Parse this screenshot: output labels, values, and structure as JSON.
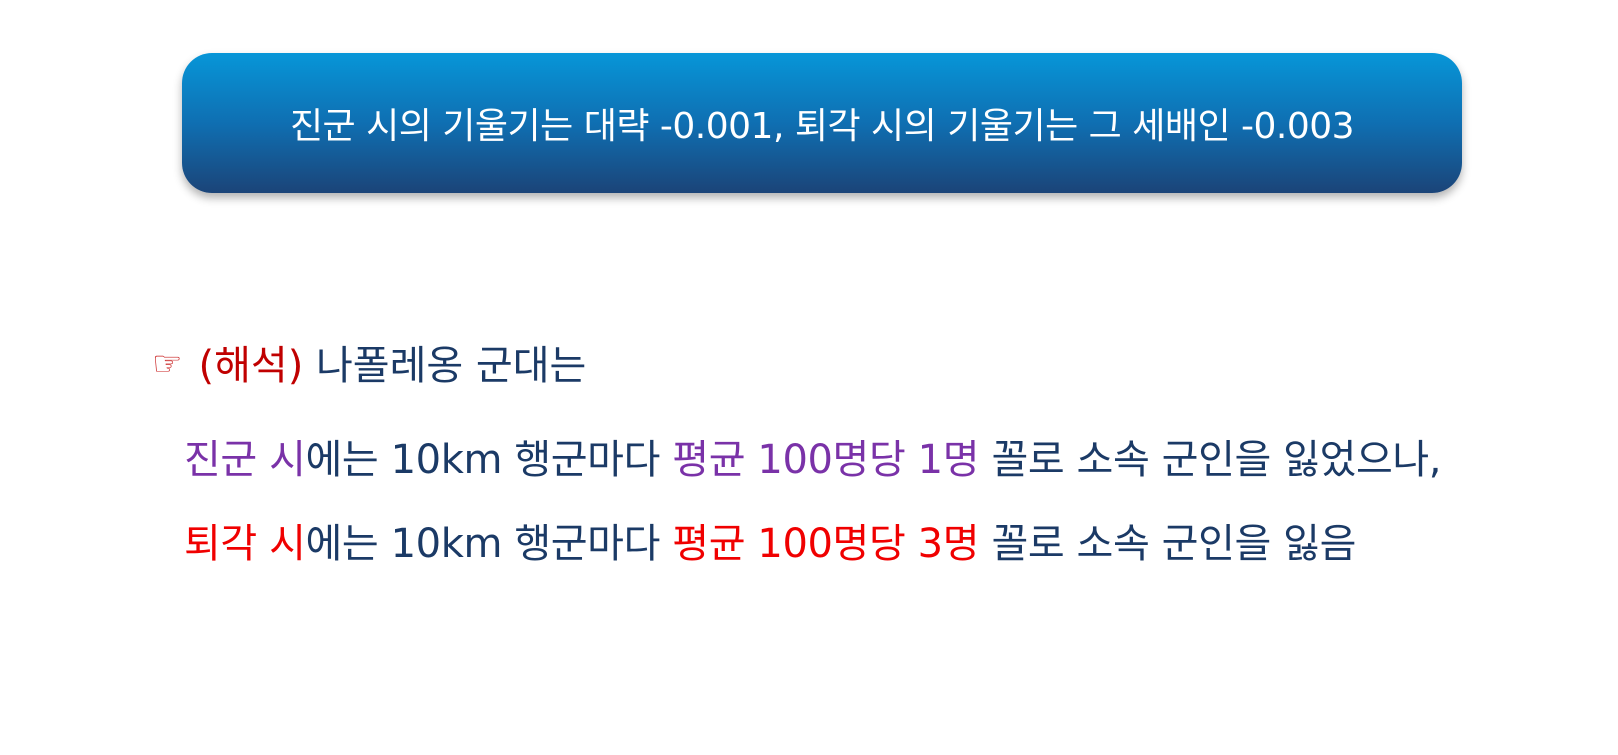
{
  "banner": {
    "text": "진군 시의 기울기는 대략 -0.001, 퇴각 시의 기울기는 그 세배인 -0.003"
  },
  "heading": {
    "icon": "pointing-hand-icon",
    "label": "(해석)",
    "text": " 나폴레옹 군대는"
  },
  "advance_line": {
    "part1": "진군 시",
    "part2": "에는 10km 행군마다 ",
    "part3": "평균 100명당 1명",
    "part4": " 꼴로 소속 군인을 잃었으나,"
  },
  "retreat_line": {
    "part1": "퇴각 시",
    "part2": "에는 10km 행군마다 ",
    "part3": "평균 100명당 3명",
    "part4": " 꼴로 소속 군인을 잃음"
  },
  "colors": {
    "banner_top": "#0796d8",
    "banner_bottom": "#1b4478",
    "navy_text": "#1b3a66",
    "label_red": "#c00000",
    "advance_purple": "#7a32a8",
    "retreat_red": "#f00000"
  }
}
